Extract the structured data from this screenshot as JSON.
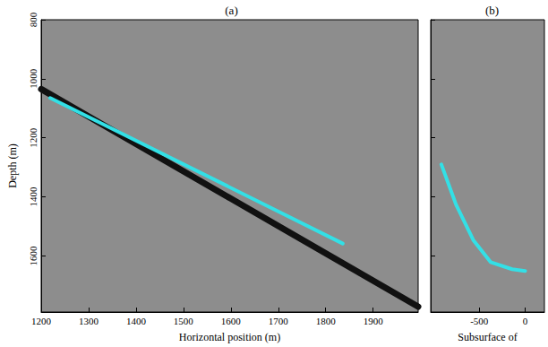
{
  "chart_data": [
    {
      "type": "line",
      "title": "(a)",
      "xlabel": "Horizontal position (m)",
      "ylabel": "Depth (m)",
      "xlim": [
        1200,
        1995
      ],
      "xticks": [
        1200,
        1300,
        1400,
        1500,
        1600,
        1700,
        1800,
        1900
      ],
      "ylim": [
        800,
        1790
      ],
      "yticks": [
        800,
        1000,
        1200,
        1400,
        1600
      ],
      "series": [
        {
          "color": "#111111",
          "line_style": "solid",
          "marker": "none",
          "x": [
            1200,
            1995
          ],
          "values": [
            1035,
            1772
          ]
        },
        {
          "color": "#33e0e6",
          "line_style": "solid",
          "marker": "none",
          "x": [
            1219,
            1836
          ],
          "values": [
            1065,
            1558
          ]
        }
      ]
    },
    {
      "type": "line",
      "title": "(b)",
      "xlabel": "Subsurface of",
      "xlim": [
        -1030,
        210
      ],
      "xticks": [
        -500,
        0
      ],
      "ylim": [
        800,
        1790
      ],
      "yticks": [
        800,
        1000,
        1200,
        1400,
        1600
      ],
      "tick_labels": "x",
      "series": [
        {
          "color": "#33e0e6",
          "line_style": "solid",
          "marker": "none",
          "x": [
            -914,
            -754,
            -566,
            -377,
            -142,
            0
          ],
          "values": [
            1290,
            1426,
            1546,
            1621,
            1645,
            1651
          ]
        }
      ]
    }
  ]
}
